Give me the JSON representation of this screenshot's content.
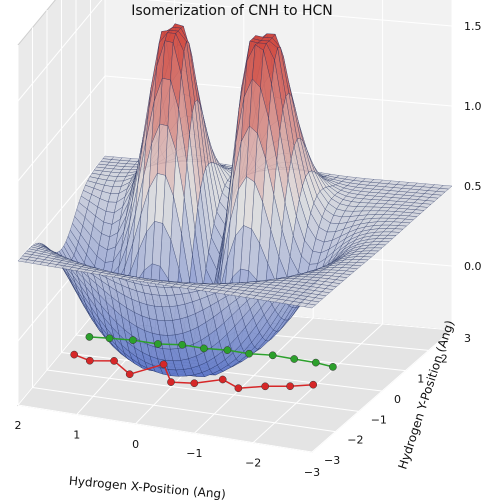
{
  "chart_data": {
    "type": "surface3d",
    "title": "Isomerization of CNH to HCN",
    "xlabel": "Hydrogen X-Position (Ang)",
    "ylabel": "Hydrogen Y-Position (Ang)",
    "zlabel": "",
    "xlim": [
      -3,
      2
    ],
    "ylim": [
      -3,
      3
    ],
    "zlim": [
      -0.4,
      1.7
    ],
    "xticks": [
      "2",
      "1",
      "0",
      "−1",
      "−2",
      "−3"
    ],
    "yticks": [
      "−3",
      "−2",
      "−1",
      "0",
      "1",
      "2",
      "3"
    ],
    "zticks": [
      "1.5",
      "1.0",
      "0.5",
      "0.0"
    ],
    "grid": true,
    "colors": {
      "surface_low": "#5a74c8",
      "surface_high": "#d0453b",
      "wireframe": "#1c2a5a",
      "path_red": "#d62728",
      "path_green": "#2ca02c"
    },
    "series": [
      {
        "color": "#d62728",
        "x": [
          1.6,
          1.3,
          0.95,
          0.55,
          0.2,
          -0.15,
          -0.5,
          -0.85,
          -1.2,
          -1.55,
          -1.9,
          -2.2
        ],
        "y": [
          -0.85,
          -1.05,
          -0.9,
          -1.45,
          -0.75,
          -1.55,
          -1.45,
          -1.1,
          -1.4,
          -1.15,
          -1.0,
          -0.8
        ],
        "z": [
          -0.3,
          -0.3,
          -0.3,
          -0.3,
          -0.3,
          -0.3,
          -0.3,
          -0.3,
          -0.3,
          -0.3,
          -0.3,
          -0.3
        ]
      },
      {
        "color": "#2ca02c",
        "x": [
          1.6,
          1.3,
          0.95,
          0.55,
          0.2,
          -0.15,
          -0.5,
          -0.85,
          -1.2,
          -1.55,
          -1.9,
          -2.2
        ],
        "y": [
          0.15,
          0.2,
          0.25,
          0.2,
          0.3,
          0.25,
          0.3,
          0.25,
          0.3,
          0.25,
          0.2,
          0.1
        ],
        "z": [
          -0.3,
          -0.3,
          -0.3,
          -0.3,
          -0.3,
          -0.3,
          -0.3,
          -0.3,
          -0.3,
          -0.3,
          -0.3,
          -0.3
        ]
      }
    ]
  }
}
